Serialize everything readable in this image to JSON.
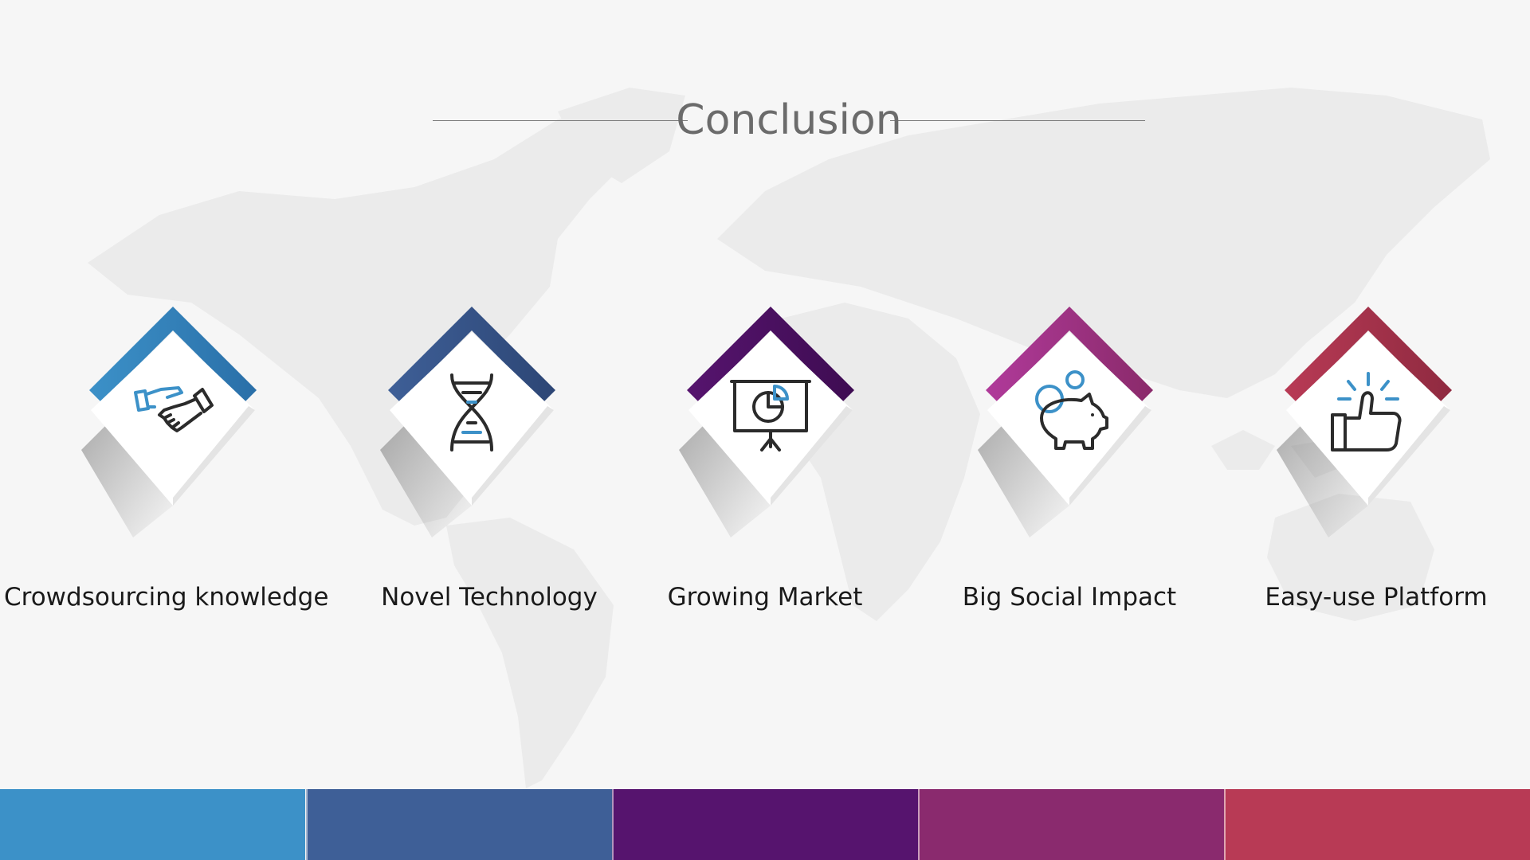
{
  "title": "Conclusion",
  "items": [
    {
      "label": "Crowdsourcing knowledge",
      "icon": "handshake-icon",
      "color": "#3c91c8",
      "color_dark": "#2a6fa8"
    },
    {
      "label": "Novel Technology",
      "icon": "dna-icon",
      "color": "#3e5f97",
      "color_dark": "#2d4675"
    },
    {
      "label": "Growing Market",
      "icon": "presentation-chart-icon",
      "color": "#56146e",
      "color_dark": "#3e0c52"
    },
    {
      "label": "Big Social Impact",
      "icon": "piggy-bank-icon",
      "color": "#b03a9a",
      "color_dark": "#8a2a6a"
    },
    {
      "label": "Easy-use Platform",
      "icon": "thumbs-up-icon",
      "color": "#b83a55",
      "color_dark": "#8f2a40"
    }
  ],
  "bottom_bar_colors": [
    "#3c91c8",
    "#3e5f97",
    "#56146e",
    "#8a2a6e",
    "#b83a55"
  ],
  "icon_colors": {
    "line": "#2b2b2b",
    "accent": "#3c91c8"
  }
}
